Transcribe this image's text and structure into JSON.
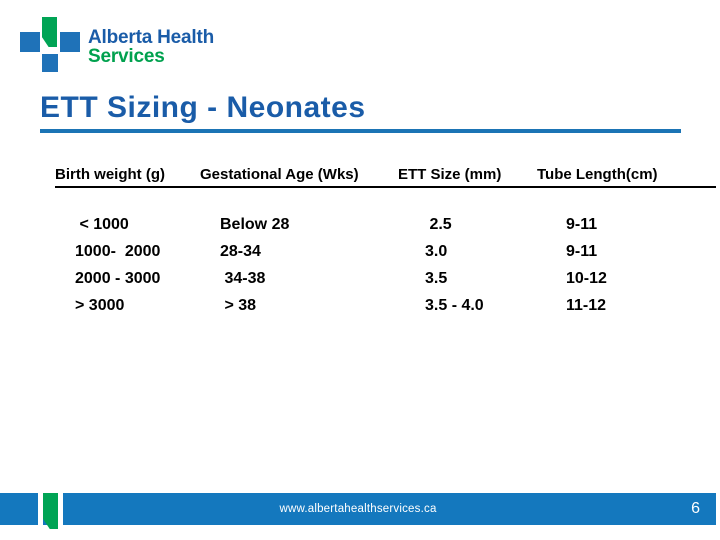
{
  "logo": {
    "line1": "Alberta Health",
    "line2": "Services"
  },
  "title": "ETT Sizing - Neonates",
  "table": {
    "headers": [
      "Birth weight (g)",
      "Gestational Age (Wks)",
      "ETT Size (mm)",
      "Tube Length(cm)"
    ],
    "rows": [
      [
        " < 1000",
        "Below 28",
        " 2.5",
        "9-11"
      ],
      [
        "1000-  2000",
        "28-34",
        "3.0",
        "9-11"
      ],
      [
        "2000 - 3000",
        " 34-38",
        "3.5",
        "10-12"
      ],
      [
        "> 3000",
        " > 38",
        "3.5 - 4.0",
        "11-12"
      ]
    ]
  },
  "footer": {
    "url": "www.albertahealthservices.ca",
    "page_number": "6"
  },
  "colors": {
    "title-blue": "#1A5CA8",
    "rule-blue": "#1B74B5",
    "logo-blue": "#1F72B8",
    "logo-green": "#00A455",
    "logo-text-green": "#00A14E",
    "footer-blue": "#1478BE",
    "table-text": "#000000"
  }
}
